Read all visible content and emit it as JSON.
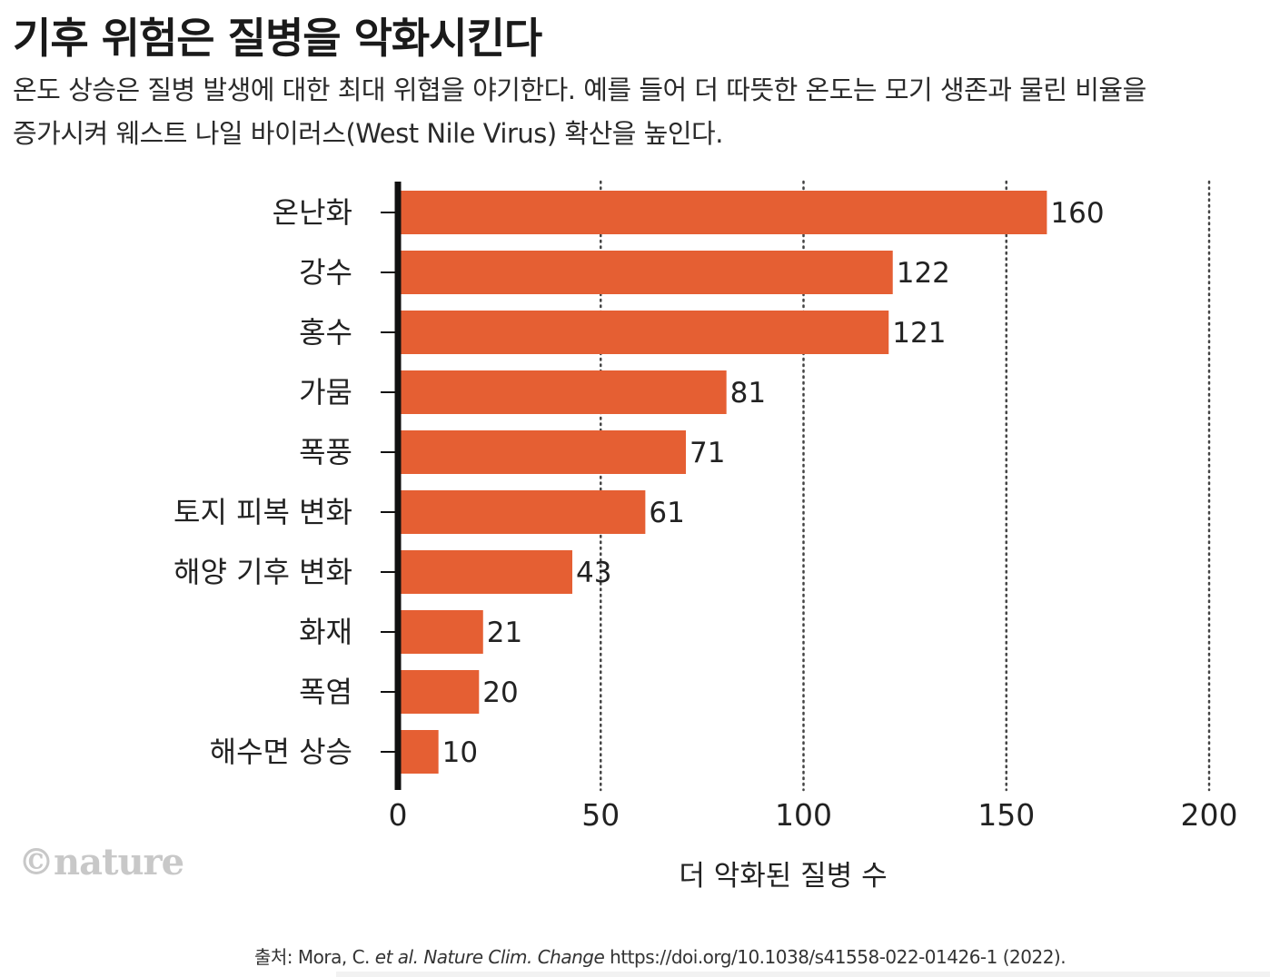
{
  "title": "기후 위험은 질병을 악화시킨다",
  "subtitle_line1": "온도 상승은 질병 발생에 대한 최대 위협을 야기한다.  예를 들어 더 따뜻한 온도는 모기 생존과 물린 비율을",
  "subtitle_line2": "증가시켜 웨스트 나일 바이러스(West Nile Virus) 확산을  높인다.",
  "logo": "©nature",
  "source": {
    "prefix": "출처: Mora, C. ",
    "etal": "et al.",
    "journal": "Nature Clim. Change",
    "suffix": "https://doi.org/10.1038/s41558-022-01426-1 (2022)."
  },
  "colors": {
    "bar": "#e55f33",
    "axis": "#111111",
    "grid": "#444444"
  },
  "chart_data": {
    "type": "bar",
    "orientation": "horizontal",
    "title": "기후 위험은 질병을 악화시킨다",
    "categories": [
      "온난화",
      "강수",
      "홍수",
      "가뭄",
      "폭풍",
      "토지 피복 변화",
      "해양 기후 변화",
      "화재",
      "폭염",
      "해수면 상승"
    ],
    "values": [
      160,
      122,
      121,
      81,
      71,
      61,
      43,
      21,
      20,
      10
    ],
    "xlabel": "더 악화된 질병 수",
    "ylabel": "",
    "xlim": [
      0,
      200
    ],
    "xticks": [
      0,
      50,
      100,
      150,
      200
    ],
    "grid": "vertical-dotted"
  }
}
